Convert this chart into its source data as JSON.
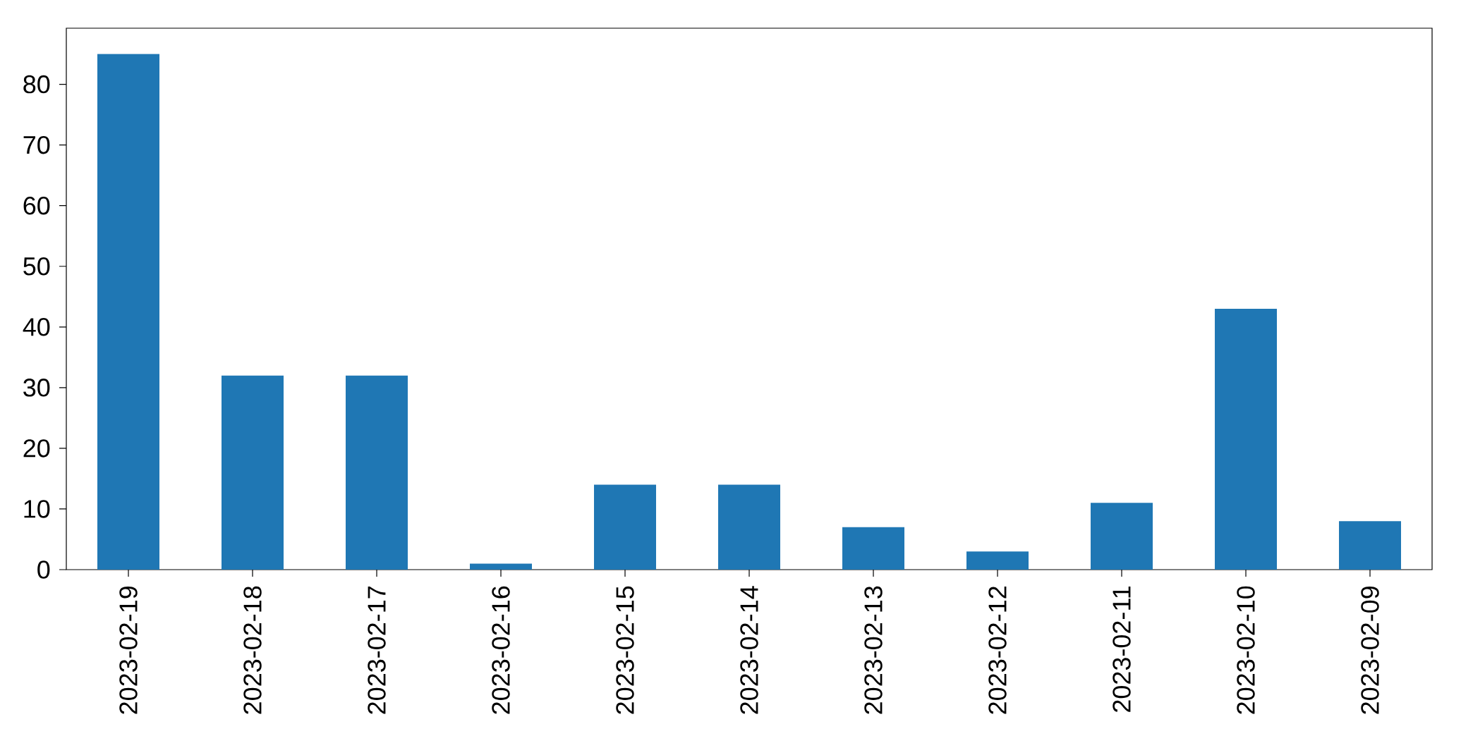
{
  "chart_data": {
    "type": "bar",
    "categories": [
      "2023-02-19",
      "2023-02-18",
      "2023-02-17",
      "2023-02-16",
      "2023-02-15",
      "2023-02-14",
      "2023-02-13",
      "2023-02-12",
      "2023-02-11",
      "2023-02-10",
      "2023-02-09"
    ],
    "values": [
      85,
      32,
      32,
      1,
      14,
      14,
      7,
      3,
      11,
      43,
      8
    ],
    "color": "#1f77b4",
    "ylim": [
      0,
      89.25
    ],
    "yticks": [
      0,
      10,
      20,
      30,
      40,
      50,
      60,
      70,
      80
    ]
  }
}
